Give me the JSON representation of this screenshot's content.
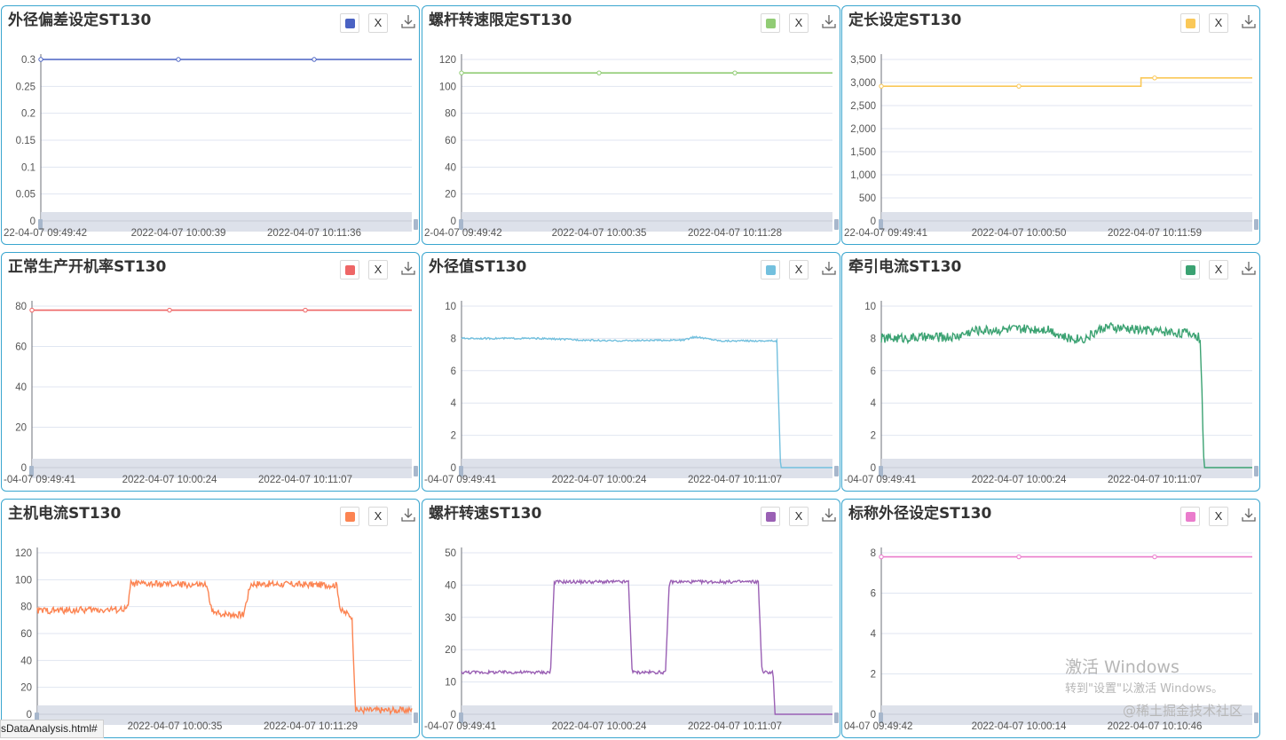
{
  "chart_data": [
    {
      "type": "line",
      "title": "外径偏差设定ST130",
      "color": "#4a62c3",
      "yticks": [
        "0",
        "0.05",
        "0.1",
        "0.15",
        "0.2",
        "0.25",
        "0.3"
      ],
      "ylim": [
        0,
        0.3
      ],
      "xticks": [
        "22-04-07 09:49:42",
        "2022-04-07 10:00:39",
        "2022-04-07 10:11:36"
      ],
      "x": [
        0,
        1
      ],
      "y": [
        0.3,
        0.3
      ]
    },
    {
      "type": "line",
      "title": "螺杆转速限定ST130",
      "color": "#91cc75",
      "yticks": [
        "0",
        "20",
        "40",
        "60",
        "80",
        "100",
        "120"
      ],
      "ylim": [
        0,
        120
      ],
      "xticks": [
        "2-04-07 09:49:42",
        "2022-04-07 10:00:35",
        "2022-04-07 10:11:28"
      ],
      "x": [
        0,
        1
      ],
      "y": [
        110,
        110
      ]
    },
    {
      "type": "line",
      "title": "定长设定ST130",
      "color": "#fac858",
      "yticks": [
        "0",
        "500",
        "1,000",
        "1,500",
        "2,000",
        "2,500",
        "3,000",
        "3,500"
      ],
      "ylim": [
        0,
        3500
      ],
      "xticks": [
        "22-04-07 09:49:41",
        "2022-04-07 10:00:50",
        "2022-04-07 10:11:59"
      ],
      "x": [
        0,
        0.7,
        0.7,
        1
      ],
      "y": [
        2920,
        2920,
        3100,
        3100
      ]
    },
    {
      "type": "line",
      "title": "正常生产开机率ST130",
      "color": "#ee6666",
      "yticks": [
        "0",
        "20",
        "40",
        "60",
        "80"
      ],
      "ylim": [
        0,
        80
      ],
      "xticks": [
        "-04-07 09:49:41",
        "2022-04-07 10:00:24",
        "2022-04-07 10:11:07"
      ],
      "x": [
        0,
        1
      ],
      "y": [
        78,
        78
      ]
    },
    {
      "type": "line",
      "title": "外径值ST130",
      "color": "#73c0de",
      "yticks": [
        "0",
        "2",
        "4",
        "6",
        "8",
        "10"
      ],
      "ylim": [
        0,
        10
      ],
      "xticks": [
        "-04-07 09:49:41",
        "2022-04-07 10:00:24",
        "2022-04-07 10:11:07"
      ],
      "x": [
        0,
        0.2,
        0.4,
        0.6,
        0.63,
        0.7,
        0.85,
        0.86,
        0.87,
        1
      ],
      "y": [
        8.0,
        8.0,
        7.85,
        7.9,
        8.1,
        7.85,
        7.85,
        0,
        0,
        0
      ],
      "noise": 0.05
    },
    {
      "type": "line",
      "title": "牵引电流ST130",
      "color": "#3ba272",
      "yticks": [
        "0",
        "2",
        "4",
        "6",
        "8",
        "10"
      ],
      "ylim": [
        0,
        10
      ],
      "xticks": [
        "-04-07 09:49:41",
        "2022-04-07 10:00:24",
        "2022-04-07 10:11:07"
      ],
      "x": [
        0,
        0.2,
        0.25,
        0.45,
        0.5,
        0.55,
        0.6,
        0.84,
        0.86,
        0.87,
        1
      ],
      "y": [
        8.0,
        8.1,
        8.5,
        8.6,
        8.0,
        8.0,
        8.7,
        8.3,
        8.0,
        0,
        0
      ],
      "noise": 0.3
    },
    {
      "type": "line",
      "title": "主机电流ST130",
      "color": "#fc8452",
      "yticks": [
        "0",
        "20",
        "40",
        "60",
        "80",
        "100",
        "120"
      ],
      "ylim": [
        0,
        120
      ],
      "xticks": [
        "2022-04-07 10:00:35",
        "2022-04-07 10:11:29"
      ],
      "x": [
        0,
        0.24,
        0.25,
        0.45,
        0.47,
        0.55,
        0.57,
        0.8,
        0.81,
        0.84,
        0.85,
        1
      ],
      "y": [
        77,
        78,
        97,
        96,
        75,
        74,
        97,
        96,
        77,
        73,
        3,
        3
      ],
      "noise": 2.5
    },
    {
      "type": "line",
      "title": "螺杆转速ST130",
      "color": "#9a60b4",
      "yticks": [
        "0",
        "10",
        "20",
        "30",
        "40",
        "50"
      ],
      "ylim": [
        0,
        50
      ],
      "xticks": [
        "-04-07 09:49:41",
        "2022-04-07 10:00:24",
        "2022-04-07 10:11:07"
      ],
      "x": [
        0,
        0.24,
        0.25,
        0.45,
        0.46,
        0.55,
        0.56,
        0.8,
        0.81,
        0.84,
        0.845,
        1
      ],
      "y": [
        13,
        13,
        41,
        41,
        13,
        13,
        41,
        41,
        13,
        13,
        0,
        0
      ],
      "noise": 0.5
    },
    {
      "type": "line",
      "title": "标称外径设定ST130",
      "color": "#ea7ccc",
      "yticks": [
        "0",
        "2",
        "4",
        "6",
        "8"
      ],
      "ylim": [
        0,
        8
      ],
      "xticks": [
        "04-07 09:49:42",
        "2022-04-07 10:00:14",
        "2022-04-07 10:10:46"
      ],
      "x": [
        0,
        1
      ],
      "y": [
        7.8,
        7.8
      ]
    }
  ],
  "toolbar": {
    "close_label": "X"
  },
  "status_bar": {
    "link": "sDataAnalysis.html#"
  },
  "watermark": {
    "line1": "激活 Windows",
    "line2": "转到\"设置\"以激活 Windows。",
    "line3": "@稀土掘金技术社区"
  }
}
